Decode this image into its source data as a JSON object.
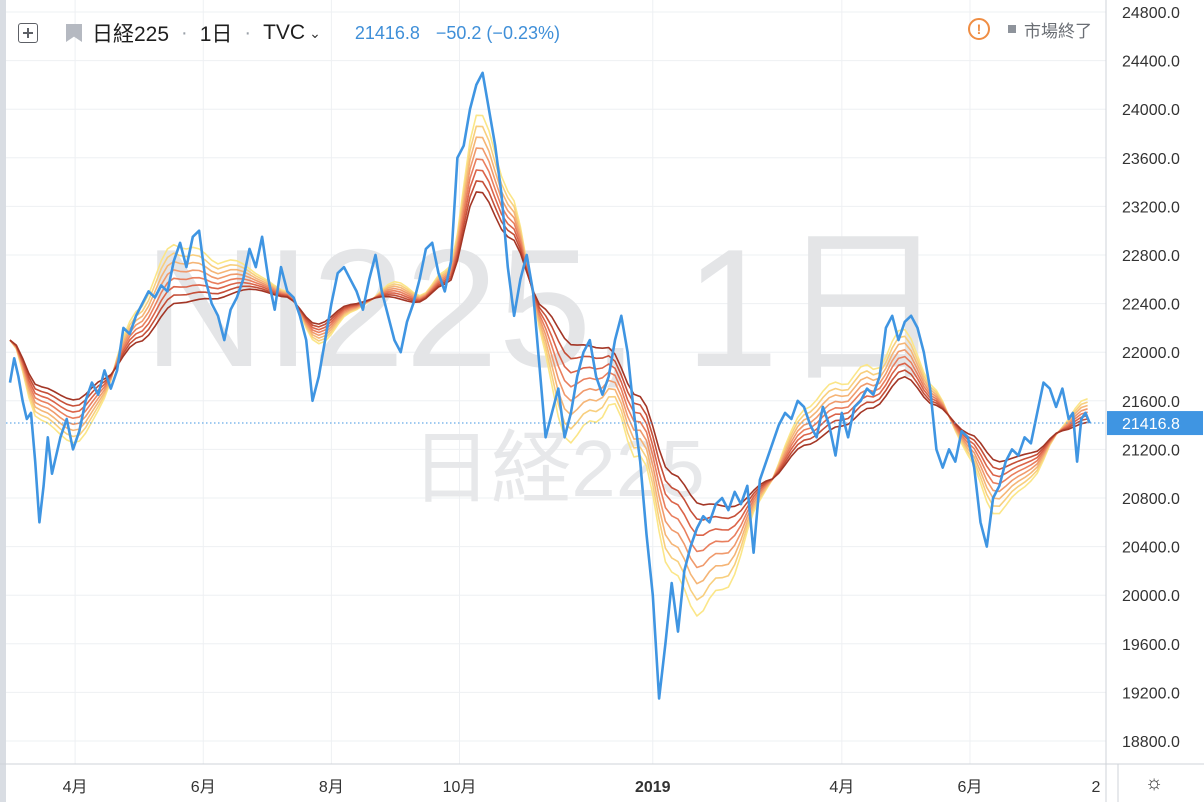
{
  "header": {
    "symbol_name": "日経225",
    "interval": "1日",
    "exchange": "TVC",
    "last_price": "21416.8",
    "change": "−50.2 (−0.23%)",
    "market_status": "市場終了"
  },
  "watermark": {
    "line1": "NI225, 1日",
    "line2": "日経225"
  },
  "colors": {
    "price_line": "#3f95e2",
    "price_label_bg": "#3f95e2",
    "ribbon": [
      "#fbe688",
      "#f8cf7e",
      "#f5b576",
      "#f09a6c",
      "#e97f5e",
      "#db6449",
      "#c54f38",
      "#a33626"
    ]
  },
  "chart_data": {
    "type": "line",
    "title": "",
    "xlabel": "",
    "ylabel": "",
    "x_range": [
      "2018-03-01",
      "2019-07-31"
    ],
    "ylim": [
      18600,
      24900
    ],
    "grid": true,
    "y_ticks": [
      18800,
      19200,
      19600,
      20000,
      20400,
      20800,
      21200,
      21600,
      22000,
      22400,
      22800,
      23200,
      23600,
      24000,
      24400,
      24800
    ],
    "y_tick_labels": [
      "18800.0",
      "19200.0",
      "19600.0",
      "20000.0",
      "20400.0",
      "20800.0",
      "21200.0",
      "21600.0",
      "22000.0",
      "22400.0",
      "22800.0",
      "23200.0",
      "23600.0",
      "24000.0",
      "24400.0",
      "24800.0"
    ],
    "x_ticks": [
      {
        "label": "4月",
        "date": "2018-04-01",
        "bold": false
      },
      {
        "label": "6月",
        "date": "2018-06-01",
        "bold": false
      },
      {
        "label": "8月",
        "date": "2018-08-01",
        "bold": false
      },
      {
        "label": "10月",
        "date": "2018-10-01",
        "bold": false
      },
      {
        "label": "2019",
        "date": "2019-01-01",
        "bold": true
      },
      {
        "label": "4月",
        "date": "2019-04-01",
        "bold": false
      },
      {
        "label": "6月",
        "date": "2019-06-01",
        "bold": false
      },
      {
        "label": "2",
        "date": "2019-07-31",
        "bold": false
      }
    ],
    "last_value": 21416.8,
    "last_value_label": "21416.8",
    "series": [
      {
        "name": "",
        "role": "price",
        "points": [
          [
            "2018-03-01",
            21750
          ],
          [
            "2018-03-03",
            21950
          ],
          [
            "2018-03-05",
            21800
          ],
          [
            "2018-03-07",
            21600
          ],
          [
            "2018-03-09",
            21450
          ],
          [
            "2018-03-11",
            21500
          ],
          [
            "2018-03-13",
            21100
          ],
          [
            "2018-03-15",
            20600
          ],
          [
            "2018-03-17",
            20900
          ],
          [
            "2018-03-19",
            21300
          ],
          [
            "2018-03-21",
            21000
          ],
          [
            "2018-03-23",
            21150
          ],
          [
            "2018-03-25",
            21300
          ],
          [
            "2018-03-28",
            21450
          ],
          [
            "2018-03-31",
            21200
          ],
          [
            "2018-04-03",
            21350
          ],
          [
            "2018-04-06",
            21600
          ],
          [
            "2018-04-09",
            21750
          ],
          [
            "2018-04-12",
            21650
          ],
          [
            "2018-04-15",
            21850
          ],
          [
            "2018-04-18",
            21700
          ],
          [
            "2018-04-21",
            21850
          ],
          [
            "2018-04-24",
            22200
          ],
          [
            "2018-04-27",
            22150
          ],
          [
            "2018-04-30",
            22300
          ],
          [
            "2018-05-03",
            22400
          ],
          [
            "2018-05-06",
            22500
          ],
          [
            "2018-05-09",
            22450
          ],
          [
            "2018-05-12",
            22550
          ],
          [
            "2018-05-15",
            22500
          ],
          [
            "2018-05-18",
            22750
          ],
          [
            "2018-05-21",
            22900
          ],
          [
            "2018-05-24",
            22700
          ],
          [
            "2018-05-27",
            22950
          ],
          [
            "2018-05-30",
            23000
          ],
          [
            "2018-06-02",
            22600
          ],
          [
            "2018-06-05",
            22400
          ],
          [
            "2018-06-08",
            22300
          ],
          [
            "2018-06-11",
            22100
          ],
          [
            "2018-06-14",
            22350
          ],
          [
            "2018-06-17",
            22450
          ],
          [
            "2018-06-20",
            22600
          ],
          [
            "2018-06-23",
            22850
          ],
          [
            "2018-06-26",
            22700
          ],
          [
            "2018-06-29",
            22950
          ],
          [
            "2018-07-02",
            22600
          ],
          [
            "2018-07-05",
            22350
          ],
          [
            "2018-07-08",
            22700
          ],
          [
            "2018-07-11",
            22500
          ],
          [
            "2018-07-14",
            22450
          ],
          [
            "2018-07-17",
            22300
          ],
          [
            "2018-07-20",
            22100
          ],
          [
            "2018-07-23",
            21600
          ],
          [
            "2018-07-26",
            21800
          ],
          [
            "2018-07-29",
            22100
          ],
          [
            "2018-08-01",
            22400
          ],
          [
            "2018-08-04",
            22650
          ],
          [
            "2018-08-07",
            22700
          ],
          [
            "2018-08-10",
            22600
          ],
          [
            "2018-08-13",
            22500
          ],
          [
            "2018-08-16",
            22350
          ],
          [
            "2018-08-19",
            22600
          ],
          [
            "2018-08-22",
            22800
          ],
          [
            "2018-08-25",
            22500
          ],
          [
            "2018-08-28",
            22300
          ],
          [
            "2018-08-31",
            22100
          ],
          [
            "2018-09-03",
            22000
          ],
          [
            "2018-09-06",
            22250
          ],
          [
            "2018-09-09",
            22400
          ],
          [
            "2018-09-12",
            22600
          ],
          [
            "2018-09-15",
            22850
          ],
          [
            "2018-09-18",
            22900
          ],
          [
            "2018-09-21",
            22650
          ],
          [
            "2018-09-24",
            22500
          ],
          [
            "2018-09-27",
            22750
          ],
          [
            "2018-09-30",
            23600
          ],
          [
            "2018-10-03",
            23700
          ],
          [
            "2018-10-06",
            24000
          ],
          [
            "2018-10-09",
            24200
          ],
          [
            "2018-10-12",
            24300
          ],
          [
            "2018-10-15",
            24000
          ],
          [
            "2018-10-18",
            23700
          ],
          [
            "2018-10-21",
            23300
          ],
          [
            "2018-10-24",
            22700
          ],
          [
            "2018-10-27",
            22300
          ],
          [
            "2018-10-30",
            22600
          ],
          [
            "2018-11-02",
            22800
          ],
          [
            "2018-11-05",
            22500
          ],
          [
            "2018-11-08",
            21900
          ],
          [
            "2018-11-11",
            21300
          ],
          [
            "2018-11-14",
            21500
          ],
          [
            "2018-11-17",
            21700
          ],
          [
            "2018-11-20",
            21300
          ],
          [
            "2018-11-23",
            21500
          ],
          [
            "2018-11-26",
            21800
          ],
          [
            "2018-11-29",
            22000
          ],
          [
            "2018-12-02",
            22100
          ],
          [
            "2018-12-05",
            21800
          ],
          [
            "2018-12-08",
            21650
          ],
          [
            "2018-12-11",
            21800
          ],
          [
            "2018-12-14",
            22100
          ],
          [
            "2018-12-17",
            22300
          ],
          [
            "2018-12-20",
            22000
          ],
          [
            "2018-12-23",
            21500
          ],
          [
            "2018-12-26",
            21100
          ],
          [
            "2018-12-29",
            20500
          ],
          [
            "2019-01-01",
            20000
          ],
          [
            "2019-01-04",
            19150
          ],
          [
            "2019-01-07",
            19600
          ],
          [
            "2019-01-10",
            20100
          ],
          [
            "2019-01-13",
            19700
          ],
          [
            "2019-01-16",
            20200
          ],
          [
            "2019-01-19",
            20400
          ],
          [
            "2019-01-22",
            20550
          ],
          [
            "2019-01-25",
            20650
          ],
          [
            "2019-01-28",
            20600
          ],
          [
            "2019-01-31",
            20750
          ],
          [
            "2019-02-03",
            20800
          ],
          [
            "2019-02-06",
            20700
          ],
          [
            "2019-02-09",
            20850
          ],
          [
            "2019-02-12",
            20750
          ],
          [
            "2019-02-15",
            20900
          ],
          [
            "2019-02-18",
            20350
          ],
          [
            "2019-02-21",
            20950
          ],
          [
            "2019-02-24",
            21100
          ],
          [
            "2019-02-27",
            21250
          ],
          [
            "2019-03-02",
            21400
          ],
          [
            "2019-03-05",
            21500
          ],
          [
            "2019-03-08",
            21450
          ],
          [
            "2019-03-11",
            21600
          ],
          [
            "2019-03-14",
            21550
          ],
          [
            "2019-03-17",
            21400
          ],
          [
            "2019-03-20",
            21300
          ],
          [
            "2019-03-23",
            21550
          ],
          [
            "2019-03-26",
            21400
          ],
          [
            "2019-03-29",
            21150
          ],
          [
            "2019-04-01",
            21500
          ],
          [
            "2019-04-04",
            21300
          ],
          [
            "2019-04-07",
            21550
          ],
          [
            "2019-04-10",
            21600
          ],
          [
            "2019-04-13",
            21700
          ],
          [
            "2019-04-16",
            21650
          ],
          [
            "2019-04-19",
            21800
          ],
          [
            "2019-04-22",
            22200
          ],
          [
            "2019-04-25",
            22300
          ],
          [
            "2019-04-28",
            22100
          ],
          [
            "2019-05-01",
            22250
          ],
          [
            "2019-05-04",
            22300
          ],
          [
            "2019-05-07",
            22200
          ],
          [
            "2019-05-10",
            22000
          ],
          [
            "2019-05-13",
            21700
          ],
          [
            "2019-05-16",
            21200
          ],
          [
            "2019-05-19",
            21050
          ],
          [
            "2019-05-22",
            21200
          ],
          [
            "2019-05-25",
            21100
          ],
          [
            "2019-05-28",
            21350
          ],
          [
            "2019-05-31",
            21300
          ],
          [
            "2019-06-03",
            21050
          ],
          [
            "2019-06-06",
            20600
          ],
          [
            "2019-06-09",
            20400
          ],
          [
            "2019-06-12",
            20800
          ],
          [
            "2019-06-15",
            20900
          ],
          [
            "2019-06-18",
            21100
          ],
          [
            "2019-06-21",
            21200
          ],
          [
            "2019-06-24",
            21150
          ],
          [
            "2019-06-27",
            21300
          ],
          [
            "2019-06-30",
            21250
          ],
          [
            "2019-07-03",
            21500
          ],
          [
            "2019-07-06",
            21750
          ],
          [
            "2019-07-09",
            21700
          ],
          [
            "2019-07-12",
            21550
          ],
          [
            "2019-07-15",
            21700
          ],
          [
            "2019-07-18",
            21450
          ],
          [
            "2019-07-20",
            21500
          ],
          [
            "2019-07-22",
            21100
          ],
          [
            "2019-07-24",
            21450
          ],
          [
            "2019-07-26",
            21500
          ],
          [
            "2019-07-28",
            21416.8
          ]
        ]
      },
      {
        "name": "",
        "role": "ribbon",
        "note": "moving-average ribbon anchors (band center)",
        "points": [
          [
            "2018-03-01",
            22100
          ],
          [
            "2018-03-15",
            21750
          ],
          [
            "2018-04-01",
            21650
          ],
          [
            "2018-04-15",
            21800
          ],
          [
            "2018-05-01",
            22050
          ],
          [
            "2018-05-20",
            22350
          ],
          [
            "2018-06-05",
            22400
          ],
          [
            "2018-06-25",
            22500
          ],
          [
            "2018-07-10",
            22450
          ],
          [
            "2018-07-25",
            22250
          ],
          [
            "2018-08-10",
            22400
          ],
          [
            "2018-08-25",
            22450
          ],
          [
            "2018-09-10",
            22400
          ],
          [
            "2018-09-25",
            22550
          ],
          [
            "2018-10-10",
            23250
          ],
          [
            "2018-10-25",
            22900
          ],
          [
            "2018-11-10",
            22400
          ],
          [
            "2018-11-25",
            22150
          ],
          [
            "2018-12-10",
            22100
          ],
          [
            "2018-12-25",
            21700
          ],
          [
            "2019-01-10",
            21100
          ],
          [
            "2019-01-25",
            20850
          ],
          [
            "2019-02-10",
            20800
          ],
          [
            "2019-02-25",
            20950
          ],
          [
            "2019-03-15",
            21200
          ],
          [
            "2019-04-01",
            21350
          ],
          [
            "2019-04-15",
            21500
          ],
          [
            "2019-05-01",
            21750
          ],
          [
            "2019-05-15",
            21550
          ],
          [
            "2019-06-01",
            21350
          ],
          [
            "2019-06-15",
            21150
          ],
          [
            "2019-07-01",
            21200
          ],
          [
            "2019-07-15",
            21350
          ],
          [
            "2019-07-28",
            21400
          ]
        ]
      }
    ]
  }
}
